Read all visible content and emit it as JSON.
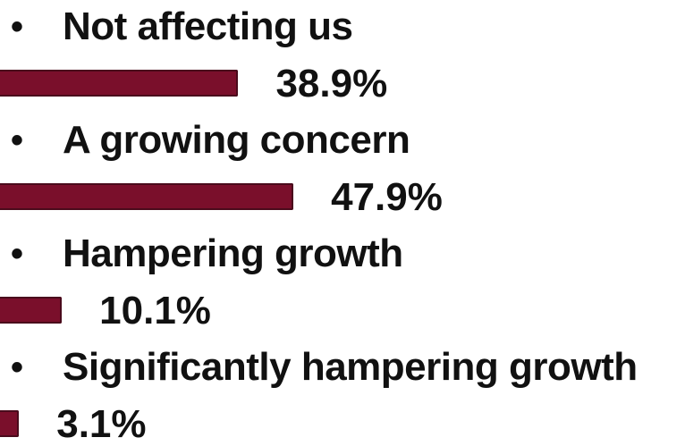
{
  "chart_data": {
    "type": "bar",
    "orientation": "horizontal",
    "categories": [
      "Not affecting us",
      "A growing concern",
      "Hampering growth",
      "Significantly hampering growth"
    ],
    "values": [
      38.9,
      47.9,
      10.1,
      3.1
    ],
    "value_labels": [
      "38.9%",
      "47.9%",
      "10.1%",
      "3.1%"
    ],
    "bullet": "•",
    "bar_color": "#7a0f2b",
    "xlim": [
      0,
      100
    ]
  }
}
